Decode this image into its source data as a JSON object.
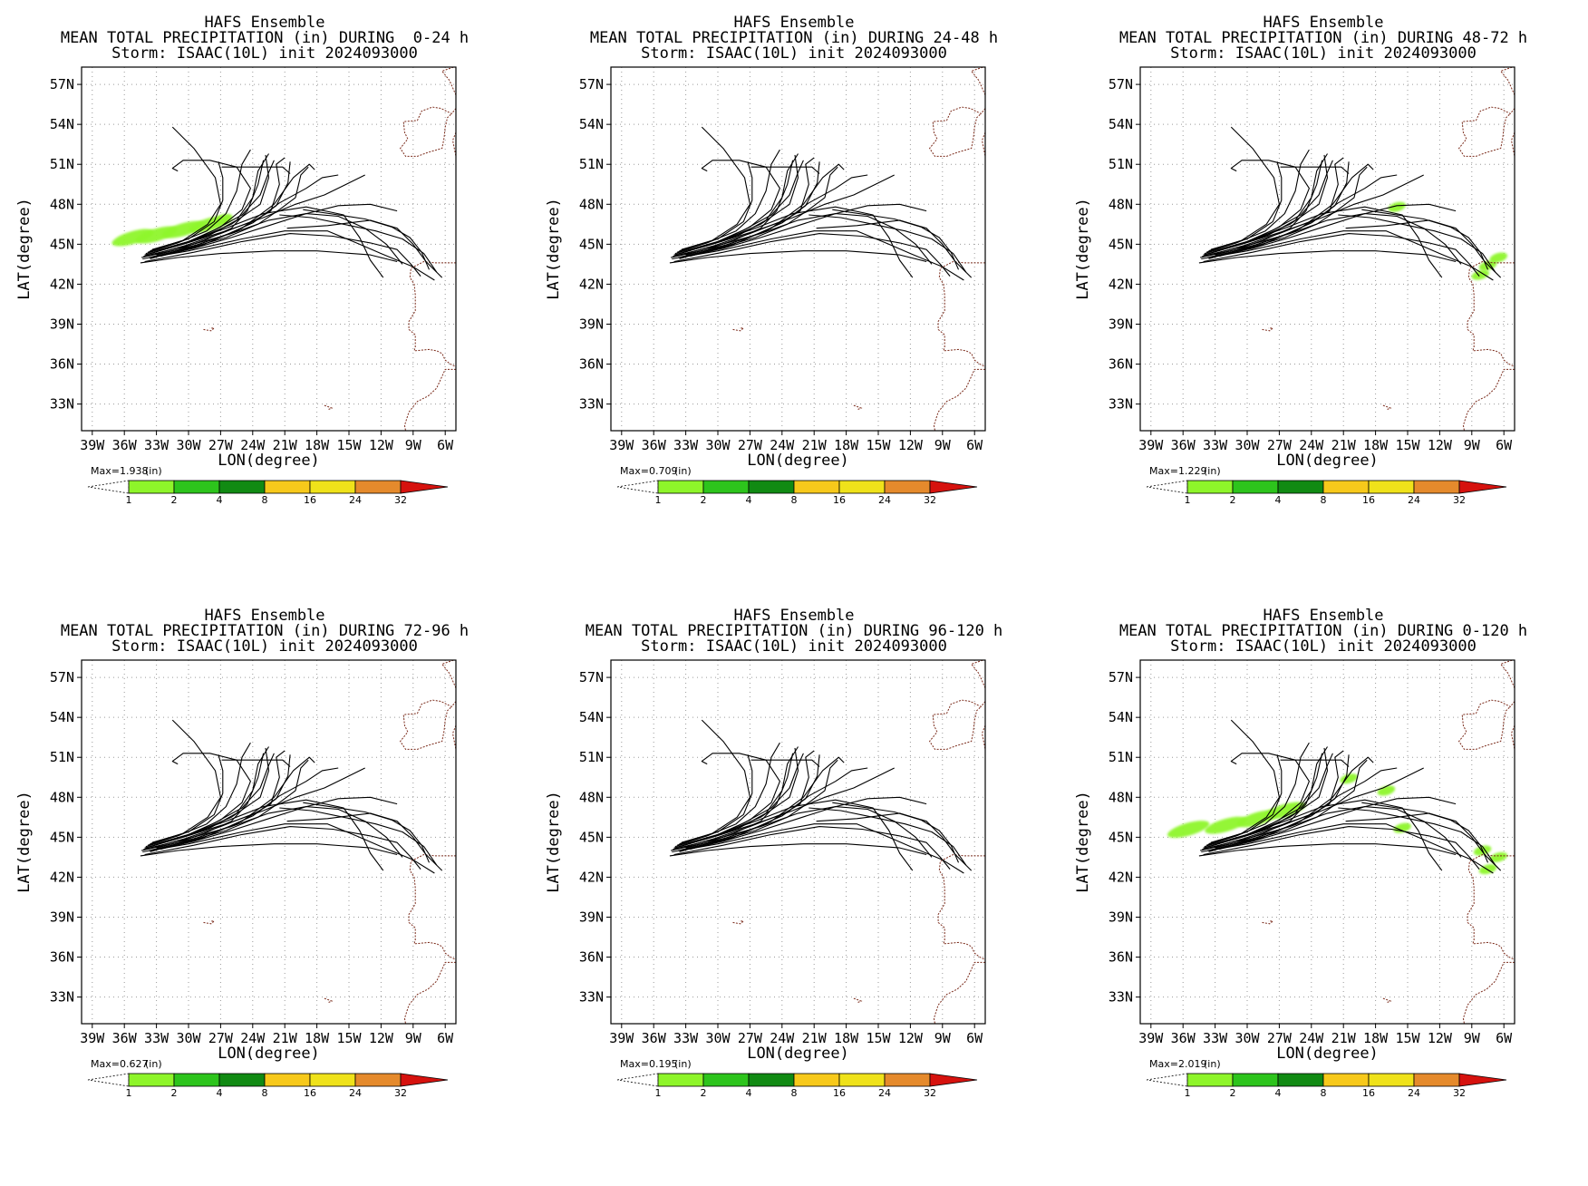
{
  "colors": {
    "track": "#000000",
    "coast": "#7a2a1a",
    "grid": "#9a9a9a",
    "precip_light": "#8ef52a"
  },
  "common": {
    "ensemble": "HAFS Ensemble",
    "storm": "Storm: ISAAC(10L) init 2024093000",
    "xlabel": "LON(degree)",
    "ylabel": "LAT(degree)",
    "units": "(in)",
    "lat_ticks": [
      "57N",
      "54N",
      "51N",
      "48N",
      "45N",
      "42N",
      "39N",
      "36N",
      "33N"
    ],
    "lon_ticks": [
      "39W",
      "36W",
      "33W",
      "30W",
      "27W",
      "24W",
      "21W",
      "18W",
      "15W",
      "12W",
      "9W",
      "6W"
    ],
    "colorbar": {
      "levels": [
        "1",
        "2",
        "4",
        "8",
        "16",
        "24",
        "32"
      ],
      "colors": [
        "#8ef52a",
        "#2dc41c",
        "#118a13",
        "#f7c91b",
        "#efe21a",
        "#e58a2c",
        "#d6120e"
      ]
    }
  },
  "panels": [
    {
      "name": "panel-0-24h",
      "heading": "MEAN TOTAL PRECIPITATION (in) DURING  0-24 h",
      "max": "Max=1.938",
      "precip": [
        [
          -35.2,
          45.5
        ],
        [
          -33,
          45.7
        ],
        [
          -30.5,
          46.1
        ],
        [
          -28,
          46.5
        ],
        [
          -26.7,
          46.9
        ]
      ]
    },
    {
      "name": "panel-24-48h",
      "heading": "MEAN TOTAL PRECIPITATION (in) DURING 24-48 h",
      "max": "Max=0.709",
      "precip": []
    },
    {
      "name": "panel-48-72h",
      "heading": "MEAN TOTAL PRECIPITATION (in) DURING 48-72 h",
      "max": "Max=1.229",
      "precip": [
        [
          -16,
          47.8
        ],
        [
          -8.2,
          42.7
        ],
        [
          -6.5,
          44
        ],
        [
          -7.5,
          43.4
        ]
      ]
    },
    {
      "name": "panel-72-96h",
      "heading": "MEAN TOTAL PRECIPITATION (in) DURING 72-96 h",
      "max": "Max=0.627",
      "precip": []
    },
    {
      "name": "panel-96-120h",
      "heading": "MEAN TOTAL PRECIPITATION (in) DURING 96-120 h",
      "max": "Max=0.195",
      "precip": []
    },
    {
      "name": "panel-0-120h",
      "heading": "MEAN TOTAL PRECIPITATION (in) DURING 0-120 h",
      "max": "Max=2.019",
      "precip": [
        [
          -35.5,
          45.6
        ],
        [
          -32,
          45.9
        ],
        [
          -29,
          46.4
        ],
        [
          -26.5,
          47
        ],
        [
          -20.5,
          49.4
        ],
        [
          -17,
          48.5
        ],
        [
          -15.5,
          45.7
        ],
        [
          -8,
          44
        ],
        [
          -6.5,
          43.5
        ],
        [
          -7.5,
          42.6
        ]
      ]
    }
  ]
}
